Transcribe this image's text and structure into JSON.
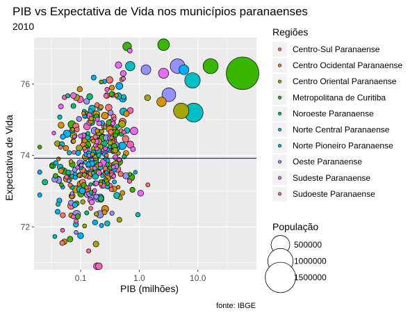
{
  "chart_data": {
    "type": "scatter",
    "title": "PIB vs Expectativa de Vida nos municípios paranaenses",
    "subtitle": "2010",
    "xlabel": "PIB (milhões)",
    "ylabel": "Expectativa de Vida",
    "caption": "fonte: IBGE",
    "x_scale": "log10",
    "xlim": [
      0.016,
      100
    ],
    "ylim": [
      70.8,
      77.3
    ],
    "x_ticks": [
      {
        "value": 0.1,
        "label": "0.1"
      },
      {
        "value": 1,
        "label": "1.0"
      },
      {
        "value": 10,
        "label": "10.0"
      }
    ],
    "y_ticks": [
      {
        "value": 72,
        "label": "72"
      },
      {
        "value": 74,
        "label": "74"
      },
      {
        "value": 76,
        "label": "76"
      }
    ],
    "reference_line": {
      "y": 73.92,
      "color": "#00008B"
    },
    "background": "#EBEBEB",
    "grid": true,
    "legend_color": {
      "title": "Regiões",
      "position": "right",
      "items": [
        {
          "name": "Centro-Sul Paranaense",
          "color": "#F8766D"
        },
        {
          "name": "Centro Ocidental Paranaense",
          "color": "#D89000"
        },
        {
          "name": "Centro Oriental Paranaense",
          "color": "#A3A500"
        },
        {
          "name": "Metropolitana de Curitiba",
          "color": "#39B600"
        },
        {
          "name": "Noroeste Paranaense",
          "color": "#00BF7D"
        },
        {
          "name": "Norte Central Paranaense",
          "color": "#00BFC4"
        },
        {
          "name": "Norte Pioneiro Paranaense",
          "color": "#00B0F6"
        },
        {
          "name": "Oeste Paranaense",
          "color": "#9590FF"
        },
        {
          "name": "Sudeste Paranaense",
          "color": "#E76BF3"
        },
        {
          "name": "Sudoeste Paranaense",
          "color": "#FF62BC"
        }
      ]
    },
    "legend_size": {
      "title": "População",
      "items": [
        {
          "label": "500000",
          "value": 500000
        },
        {
          "label": "1000000",
          "value": 1000000
        },
        {
          "label": "1500000",
          "value": 1500000
        }
      ]
    },
    "size_mapping": {
      "population_per_area_unit": 3.4,
      "base_radius": 1.9
    },
    "notable_points": [
      {
        "x": 58,
        "y": 76.3,
        "population": 1750000,
        "region": "Metropolitana de Curitiba"
      },
      {
        "x": 8.5,
        "y": 75.2,
        "population": 510000,
        "region": "Norte Central Paranaense"
      },
      {
        "x": 16.5,
        "y": 76.5,
        "population": 300000,
        "region": "Metropolitana de Curitiba"
      },
      {
        "x": 8.1,
        "y": 76.1,
        "population": 320000,
        "region": "Norte Central Paranaense"
      },
      {
        "x": 4.5,
        "y": 76.5,
        "population": 280000,
        "region": "Oeste Paranaense"
      },
      {
        "x": 5.2,
        "y": 75.25,
        "population": 320000,
        "region": "Centro Oriental Paranaense"
      },
      {
        "x": 3.2,
        "y": 75.7,
        "population": 240000,
        "region": "Oeste Paranaense"
      },
      {
        "x": 2.6,
        "y": 77.1,
        "population": 160000,
        "region": "Metropolitana de Curitiba"
      },
      {
        "x": 0.62,
        "y": 77.05,
        "population": 70000,
        "region": "Metropolitana de Curitiba"
      },
      {
        "x": 2.6,
        "y": 76.3,
        "population": 110000,
        "region": "Sudeste Paranaense"
      },
      {
        "x": 1.3,
        "y": 76.4,
        "population": 100000,
        "region": "Oeste Paranaense"
      },
      {
        "x": 5.8,
        "y": 76.4,
        "population": 100000,
        "region": "Norte Pioneiro Paranaense"
      },
      {
        "x": 0.7,
        "y": 76.5,
        "population": 90000,
        "region": "Norte Central Paranaense"
      },
      {
        "x": 2.4,
        "y": 75.5,
        "population": 90000,
        "region": "Centro Ocidental Paranaense"
      }
    ],
    "cloud": {
      "count": 370,
      "x_range": [
        0.02,
        1.4
      ],
      "y_mean": 73.95,
      "y_sd": 0.95,
      "y_range": [
        70.9,
        77.0
      ],
      "population_range": [
        2000,
        60000
      ]
    }
  }
}
